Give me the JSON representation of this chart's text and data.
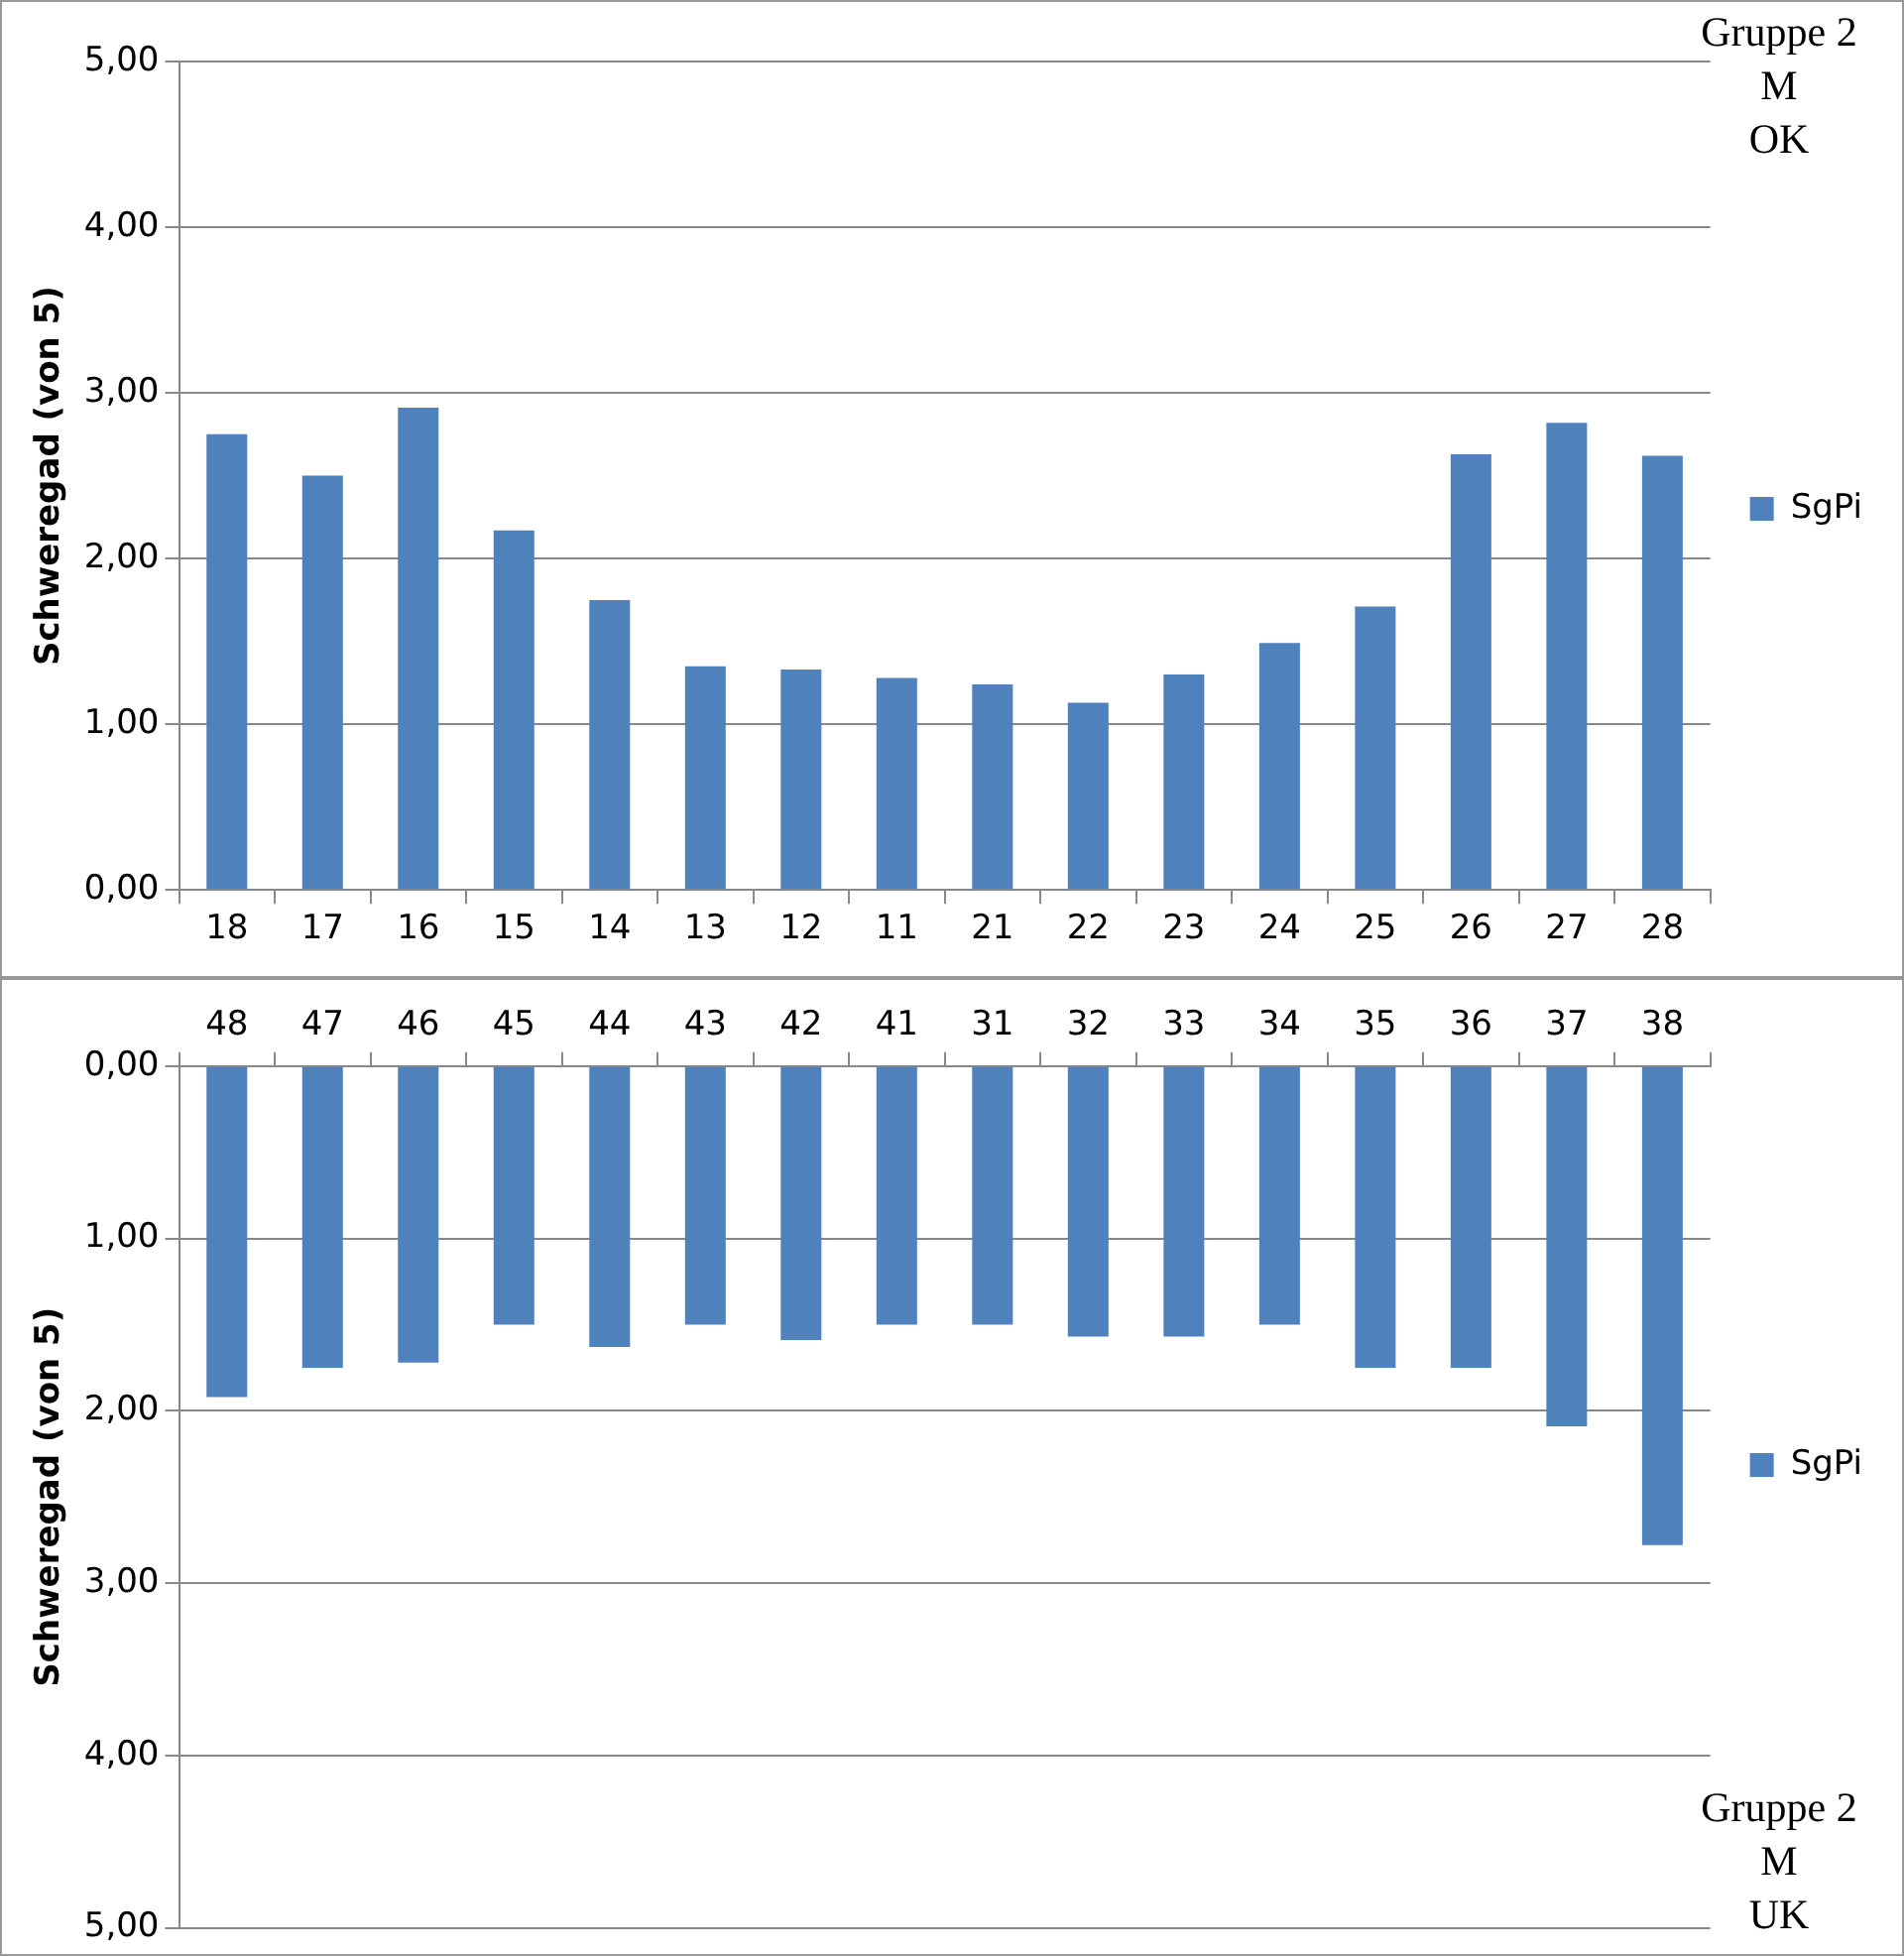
{
  "chart_data": [
    {
      "type": "bar",
      "ylabel": "Schweregad (von 5)",
      "categories": [
        "18",
        "17",
        "16",
        "15",
        "14",
        "13",
        "12",
        "11",
        "21",
        "22",
        "23",
        "24",
        "25",
        "26",
        "27",
        "28"
      ],
      "series": [
        {
          "name": "SgPi",
          "color": "#4f81bd",
          "values": [
            2.75,
            2.5,
            2.91,
            2.17,
            1.75,
            1.35,
            1.33,
            1.28,
            1.24,
            1.13,
            1.3,
            1.49,
            1.71,
            2.63,
            2.82,
            2.62
          ]
        }
      ],
      "ylim": [
        0,
        5
      ],
      "yticks": [
        {
          "value": 0,
          "label": "0,00"
        },
        {
          "value": 1,
          "label": "1,00"
        },
        {
          "value": 2,
          "label": "2,00"
        },
        {
          "value": 3,
          "label": "3,00"
        },
        {
          "value": 4,
          "label": "4,00"
        },
        {
          "value": 5,
          "label": "5,00"
        }
      ],
      "grid": "y",
      "legend": "right",
      "annotations": [
        "Gruppe 2\nM\nOK"
      ]
    },
    {
      "type": "bar",
      "ylabel": "Schweregad (von 5)",
      "categories": [
        "48",
        "47",
        "46",
        "45",
        "44",
        "43",
        "42",
        "41",
        "31",
        "32",
        "33",
        "34",
        "35",
        "36",
        "37",
        "38"
      ],
      "series": [
        {
          "name": "SgPi",
          "color": "#4f81bd",
          "values": [
            1.92,
            1.75,
            1.72,
            1.5,
            1.63,
            1.5,
            1.59,
            1.5,
            1.5,
            1.57,
            1.57,
            1.5,
            1.75,
            1.75,
            2.09,
            2.78
          ]
        }
      ],
      "ylim": [
        5,
        0
      ],
      "yticks": [
        {
          "value": 0,
          "label": "0,00"
        },
        {
          "value": 1,
          "label": "1,00"
        },
        {
          "value": 2,
          "label": "2,00"
        },
        {
          "value": 3,
          "label": "3,00"
        },
        {
          "value": 4,
          "label": "4,00"
        },
        {
          "value": 5,
          "label": "5,00"
        }
      ],
      "grid": "y",
      "legend": "right",
      "annotations": [
        "Gruppe 2\nM\nUK"
      ]
    }
  ]
}
